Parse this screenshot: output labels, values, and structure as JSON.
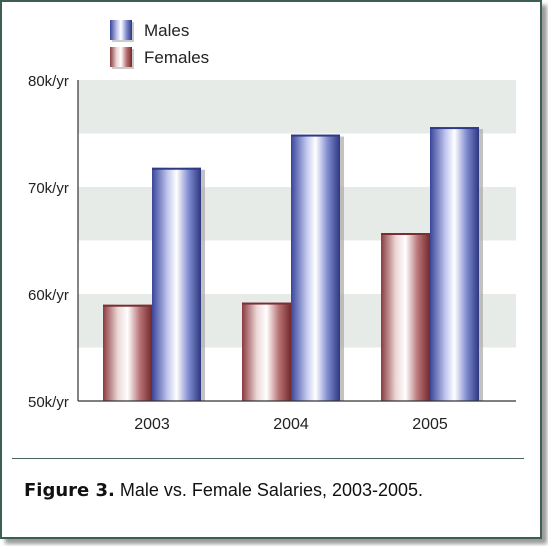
{
  "chart_data": {
    "type": "bar",
    "title": "",
    "xlabel": "",
    "ylabel": "",
    "categories": [
      "2003",
      "2004",
      "2005"
    ],
    "series": [
      {
        "name": "Females",
        "values": [
          59,
          59.2,
          65.7
        ]
      },
      {
        "name": "Males",
        "values": [
          71.8,
          74.9,
          75.6
        ]
      }
    ],
    "ylim": [
      50,
      80
    ],
    "yticks": [
      50,
      60,
      70,
      80
    ],
    "ytick_labels": [
      "50k/yr",
      "60k/yr",
      "70k/yr",
      "80k/yr"
    ],
    "legend_position": "top-left",
    "grid": "alternating horizontal bands",
    "colors": {
      "Males": "#5a68b6",
      "Females": "#9a4a4e",
      "band": "#e6ebe8",
      "axis": "#333333"
    }
  },
  "caption": {
    "label": "Figure 3.",
    "text": " Male vs. Female Salaries, 2003-2005."
  }
}
